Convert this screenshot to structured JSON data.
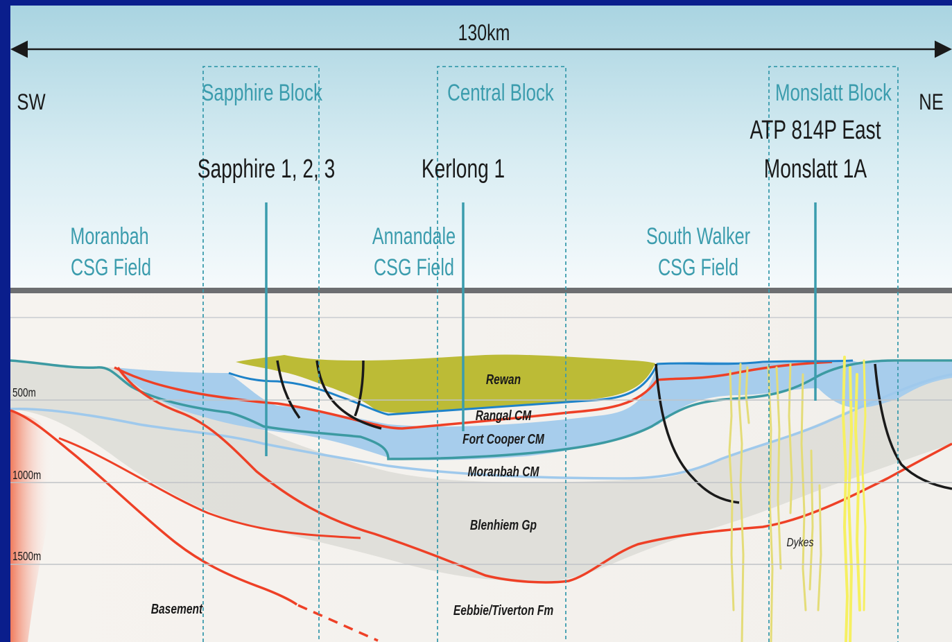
{
  "scale": {
    "distance": "130km"
  },
  "orientation": {
    "left": "SW",
    "right": "NE"
  },
  "blocks": [
    {
      "name": "Sapphire Block"
    },
    {
      "name": "Central Block"
    },
    {
      "name": "Monslatt Block"
    }
  ],
  "wells": {
    "sapphire": "Sapphire 1, 2, 3",
    "kerlong": "Kerlong 1",
    "monslatt_line1": "ATP 814P East",
    "monslatt_line2": "Monslatt 1A"
  },
  "fields": {
    "moranbah": {
      "line1": "Moranbah",
      "line2": "CSG Field"
    },
    "annandale": {
      "line1": "Annandale",
      "line2": "CSG Field"
    },
    "south_walker": {
      "line1": "South Walker",
      "line2": "CSG Field"
    }
  },
  "depths": [
    "500m",
    "1000m",
    "1500m"
  ],
  "formations": {
    "rewan": "Rewan",
    "rangal": "Rangal CM",
    "fort_cooper": "Fort Cooper CM",
    "moranbah": "Moranbah CM",
    "blenhiem": "Blenhiem Gp",
    "eebbie": "Eebbie/Tiverton Fm",
    "basement": "Basement",
    "dykes": "Dykes"
  },
  "colors": {
    "frame": "#0a1e8c",
    "sky_top": "#aed7e3",
    "sky_bottom": "#f4f9fb",
    "teal_text": "#3b9cad",
    "rewan_fill": "#b9b835",
    "coal_fill": "#a5cdea",
    "orange_line": "#ee4026",
    "teal_line": "#3c9aa2",
    "blue_line": "#1e82c8",
    "light_blue_line": "#9fc9ec",
    "basement_fill": "#f39075",
    "dyke": "#e4dc78",
    "dyke_bright": "#f6f061"
  }
}
